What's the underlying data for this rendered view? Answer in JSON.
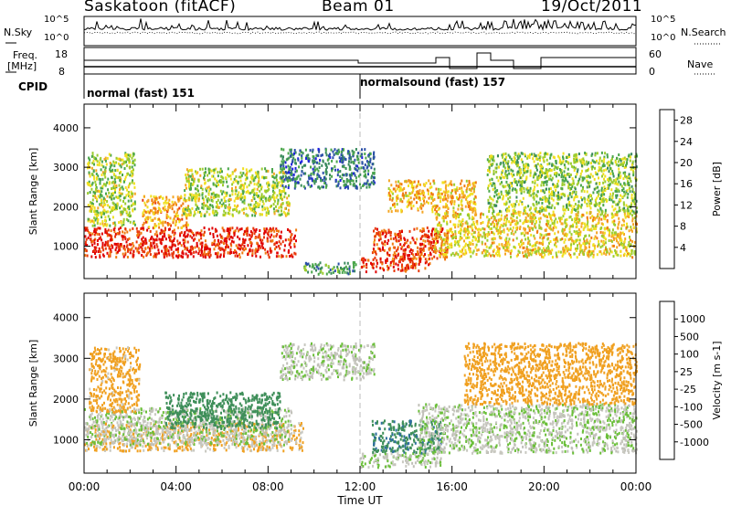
{
  "header": {
    "station": "Saskatoon (fitACF)",
    "beam": "Beam 01",
    "date": "19/Oct/2011"
  },
  "noise_panel": {
    "left_label": "N.Sky",
    "right_label": "N.Search",
    "tick_top": "10^5",
    "tick_bottom": "10^0"
  },
  "freq_panel": {
    "left_label_line1": "Freq.",
    "left_label_line2": "[MHz]",
    "left_ticks": [
      "18",
      "8"
    ],
    "right_label": "Nave",
    "right_ticks": [
      "60",
      "0"
    ]
  },
  "cpid_panel": {
    "label": "CPID",
    "modes": [
      {
        "name": "normal (fast) 151",
        "start_hour": 0
      },
      {
        "name": "normalsound (fast) 157",
        "start_hour": 12
      }
    ]
  },
  "x_axis": {
    "label": "Time UT",
    "ticks": [
      "00:00",
      "04:00",
      "08:00",
      "12:00",
      "16:00",
      "20:00",
      "00:00"
    ]
  },
  "colors": {
    "power_scale": [
      "#1f1fe0",
      "#2b4fa8",
      "#3a8a5e",
      "#4aa64a",
      "#9ccc2f",
      "#f0e020",
      "#f5a623",
      "#f07a10",
      "#e8380c",
      "#e00000"
    ],
    "velocity_scale": [
      "#2233aa",
      "#2e6e9e",
      "#3f8f5a",
      "#6bbf3a",
      "#c8c8c0",
      "#c8c8c0",
      "#f0a020",
      "#f07a10",
      "#e84a10",
      "#e00000"
    ],
    "ground_scatter": "#c0c0b8"
  },
  "chart_data": [
    {
      "type": "heatmap",
      "title": "Power",
      "ylabel": "Slant Range [km]",
      "xlabel": "",
      "xlim": [
        0,
        24
      ],
      "ylim": [
        180,
        4600
      ],
      "yticks": [
        1000,
        2000,
        3000,
        4000
      ],
      "colorbar_label": "Power [dB]",
      "colorbar_ticks": [
        "4",
        "8",
        "12",
        "16",
        "20",
        "24",
        "28"
      ],
      "colorbar_range": [
        0,
        30
      ],
      "features": [
        {
          "t0": 0.0,
          "t1": 9.2,
          "r0": 750,
          "r1": 1500,
          "value": 27
        },
        {
          "t0": 0.1,
          "t1": 2.2,
          "r0": 1550,
          "r1": 3400,
          "value": 14
        },
        {
          "t0": 2.5,
          "t1": 4.6,
          "r0": 1500,
          "r1": 2300,
          "value": 20
        },
        {
          "t0": 4.3,
          "t1": 8.9,
          "r0": 1800,
          "r1": 3000,
          "value": 14
        },
        {
          "t0": 8.5,
          "t1": 12.6,
          "r0": 2500,
          "r1": 3500,
          "value": 7
        },
        {
          "t0": 9.5,
          "t1": 11.8,
          "r0": 320,
          "r1": 620,
          "value": 9
        },
        {
          "t0": 12.0,
          "t1": 15.0,
          "r0": 380,
          "r1": 720,
          "value": 26
        },
        {
          "t0": 12.5,
          "t1": 15.8,
          "r0": 700,
          "r1": 1500,
          "value": 25
        },
        {
          "t0": 13.2,
          "t1": 17.0,
          "r0": 1900,
          "r1": 2700,
          "value": 19
        },
        {
          "t0": 15.2,
          "t1": 24.0,
          "r0": 750,
          "r1": 1900,
          "value": 17
        },
        {
          "t0": 17.5,
          "t1": 24.0,
          "r0": 1900,
          "r1": 3400,
          "value": 13
        }
      ]
    },
    {
      "type": "heatmap",
      "title": "Velocity",
      "ylabel": "Slant Range [km]",
      "xlabel": "Time UT",
      "xlim": [
        0,
        24
      ],
      "ylim": [
        180,
        4600
      ],
      "yticks": [
        1000,
        2000,
        3000,
        4000
      ],
      "colorbar_label": "Velocity [m s-1]",
      "colorbar_ticks": [
        "1000",
        "500",
        "100",
        "25",
        "-25",
        "-100",
        "-500",
        "-1000"
      ],
      "features": [
        {
          "t0": 0.0,
          "t1": 9.5,
          "r0": 750,
          "r1": 1450,
          "value": -120
        },
        {
          "t0": 0.0,
          "t1": 9.0,
          "r0": 900,
          "r1": 1800,
          "value": 0
        },
        {
          "t0": 3.5,
          "t1": 8.5,
          "r0": 1300,
          "r1": 2200,
          "value": 300
        },
        {
          "t0": 0.2,
          "t1": 2.4,
          "r0": 1700,
          "r1": 3300,
          "value": -200
        },
        {
          "t0": 8.5,
          "t1": 12.6,
          "r0": 2500,
          "r1": 3400,
          "value": 0
        },
        {
          "t0": 12.0,
          "t1": 15.5,
          "r0": 350,
          "r1": 700,
          "value": 0
        },
        {
          "t0": 12.5,
          "t1": 15.5,
          "r0": 700,
          "r1": 1500,
          "value": 400
        },
        {
          "t0": 14.5,
          "t1": 24.0,
          "r0": 700,
          "r1": 1900,
          "value": 0
        },
        {
          "t0": 16.5,
          "t1": 24.0,
          "r0": 1900,
          "r1": 3400,
          "value": -300
        }
      ]
    }
  ]
}
